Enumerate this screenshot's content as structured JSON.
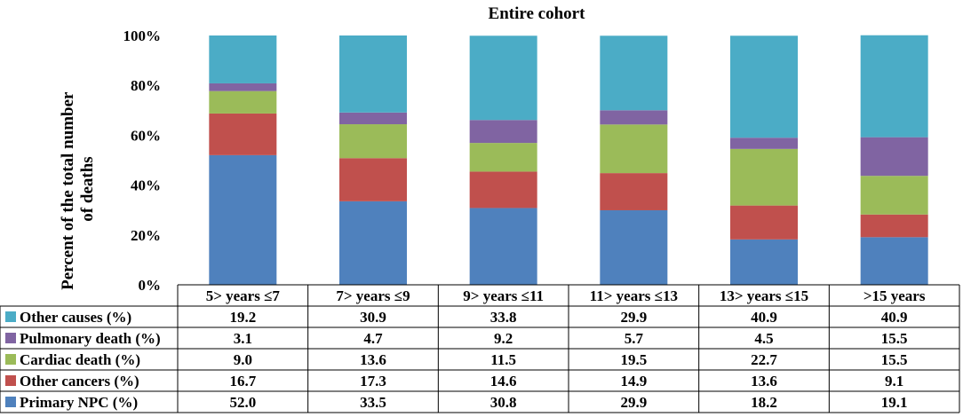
{
  "chart_data": {
    "type": "bar",
    "stacked": true,
    "title": "Entire cohort",
    "ylabel": "Percent of the total number of deaths",
    "ylabel_lines": [
      "Percent of the total number",
      "of deaths"
    ],
    "ylim": [
      0,
      100
    ],
    "yticks": [
      "0%",
      "20%",
      "40%",
      "60%",
      "80%",
      "100%"
    ],
    "categories": [
      "5> years ≤7",
      "7> years ≤9",
      "9> years ≤11",
      "11> years ≤13",
      "13> years ≤15",
      ">15 years"
    ],
    "series": [
      {
        "name": "Primary NPC (%)",
        "color": "#4F81BD",
        "values": [
          52.0,
          33.5,
          30.8,
          29.9,
          18.2,
          19.1
        ],
        "labels": [
          "52.0",
          "33.5",
          "30.8",
          "29.9",
          "18.2",
          "19.1"
        ]
      },
      {
        "name": "Other cancers (%)",
        "color": "#C0504D",
        "values": [
          16.7,
          17.3,
          14.6,
          14.9,
          13.6,
          9.1
        ],
        "labels": [
          "16.7",
          "17.3",
          "14.6",
          "14.9",
          "13.6",
          "9.1"
        ]
      },
      {
        "name": "Cardiac death (%)",
        "color": "#9BBB59",
        "values": [
          9.0,
          13.6,
          11.5,
          19.5,
          22.7,
          15.5
        ],
        "labels": [
          "9.0",
          "13.6",
          "11.5",
          "19.5",
          "22.7",
          "15.5"
        ]
      },
      {
        "name": "Pulmonary death (%)",
        "color": "#8064A2",
        "values": [
          3.1,
          4.7,
          9.2,
          5.7,
          4.5,
          15.5
        ],
        "labels": [
          "3.1",
          "4.7",
          "9.2",
          "5.7",
          "4.5",
          "15.5"
        ]
      },
      {
        "name": "Other causes (%)",
        "color": "#4BACC6",
        "values": [
          19.2,
          30.9,
          33.8,
          29.9,
          40.9,
          40.9
        ],
        "labels": [
          "19.2",
          "30.9",
          "33.8",
          "29.9",
          "40.9",
          "40.9"
        ]
      }
    ],
    "data_table": true,
    "grid": false
  }
}
